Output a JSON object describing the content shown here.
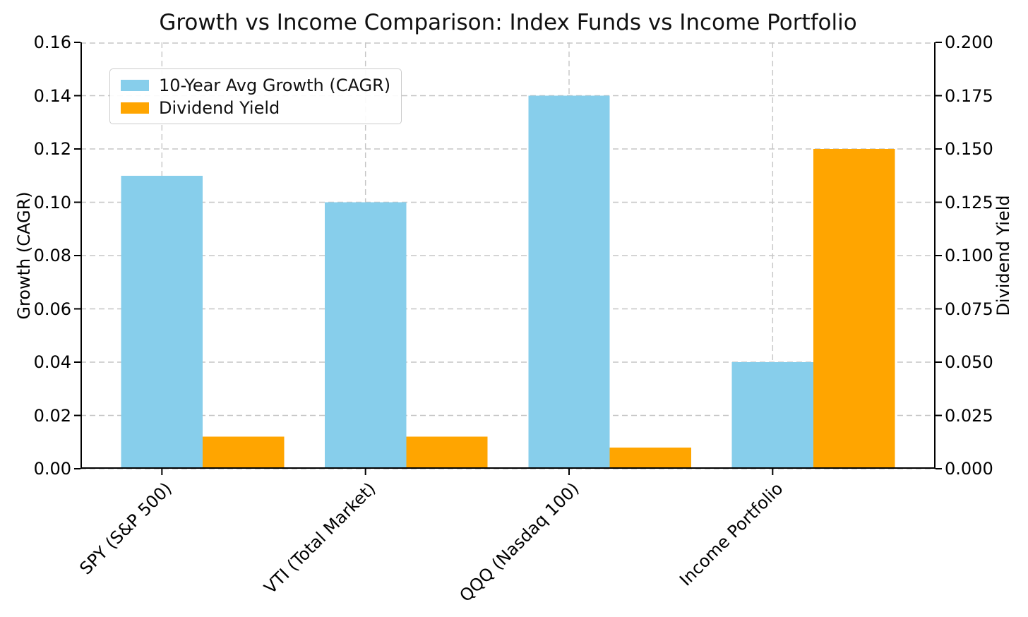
{
  "chart_data": {
    "type": "bar",
    "title": "Growth vs Income Comparison: Index Funds vs Income Portfolio",
    "categories": [
      "SPY (S&P 500)",
      "VTI (Total Market)",
      "QQQ (Nasdaq 100)",
      "Income Portfolio"
    ],
    "series": [
      {
        "name": "10-Year Avg Growth (CAGR)",
        "axis": "left",
        "color": "#87CEEB",
        "values": [
          0.11,
          0.1,
          0.14,
          0.04
        ]
      },
      {
        "name": "Dividend Yield",
        "axis": "right",
        "color": "#FFA500",
        "values": [
          0.015,
          0.015,
          0.01,
          0.15
        ]
      }
    ],
    "axes": {
      "left": {
        "label": "Growth (CAGR)",
        "min": 0,
        "max": 0.16,
        "ticks": [
          "0.00",
          "0.02",
          "0.04",
          "0.06",
          "0.08",
          "0.10",
          "0.12",
          "0.14",
          "0.16"
        ]
      },
      "right": {
        "label": "Dividend Yield",
        "min": 0,
        "max": 0.2,
        "ticks": [
          "0.000",
          "0.025",
          "0.050",
          "0.075",
          "0.100",
          "0.125",
          "0.150",
          "0.175",
          "0.200"
        ]
      }
    },
    "legend": {
      "position": "upper-left",
      "entries": [
        "10-Year Avg Growth (CAGR)",
        "Dividend Yield"
      ]
    },
    "grid": {
      "visible": true,
      "style": "dashed"
    },
    "bar_width": 0.4,
    "xlim": [
      -0.4,
      3.8
    ],
    "x_tick_rotation": 45
  }
}
